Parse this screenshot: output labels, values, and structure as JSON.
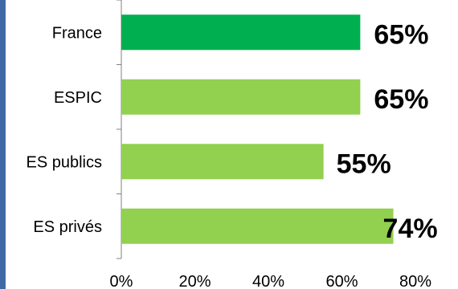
{
  "chart_data": {
    "type": "bar",
    "orientation": "horizontal",
    "categories": [
      "France",
      "ESPIC",
      "ES publics",
      "ES privés"
    ],
    "values": [
      65,
      65,
      55,
      74
    ],
    "data_labels": [
      "65%",
      "65%",
      "55%",
      "74%"
    ],
    "xlim": [
      0,
      80
    ],
    "xticks": [
      0,
      20,
      40,
      60,
      80
    ],
    "xtick_labels": [
      "0%",
      "20%",
      "40%",
      "60%",
      "80%"
    ],
    "title": "",
    "xlabel": "",
    "ylabel": "",
    "grid": false,
    "colors": {
      "highlight": "#00b050",
      "default": "#92d050",
      "axis": "#808080",
      "frame_border": "#3f6aa6"
    },
    "highlight_index": 0
  }
}
